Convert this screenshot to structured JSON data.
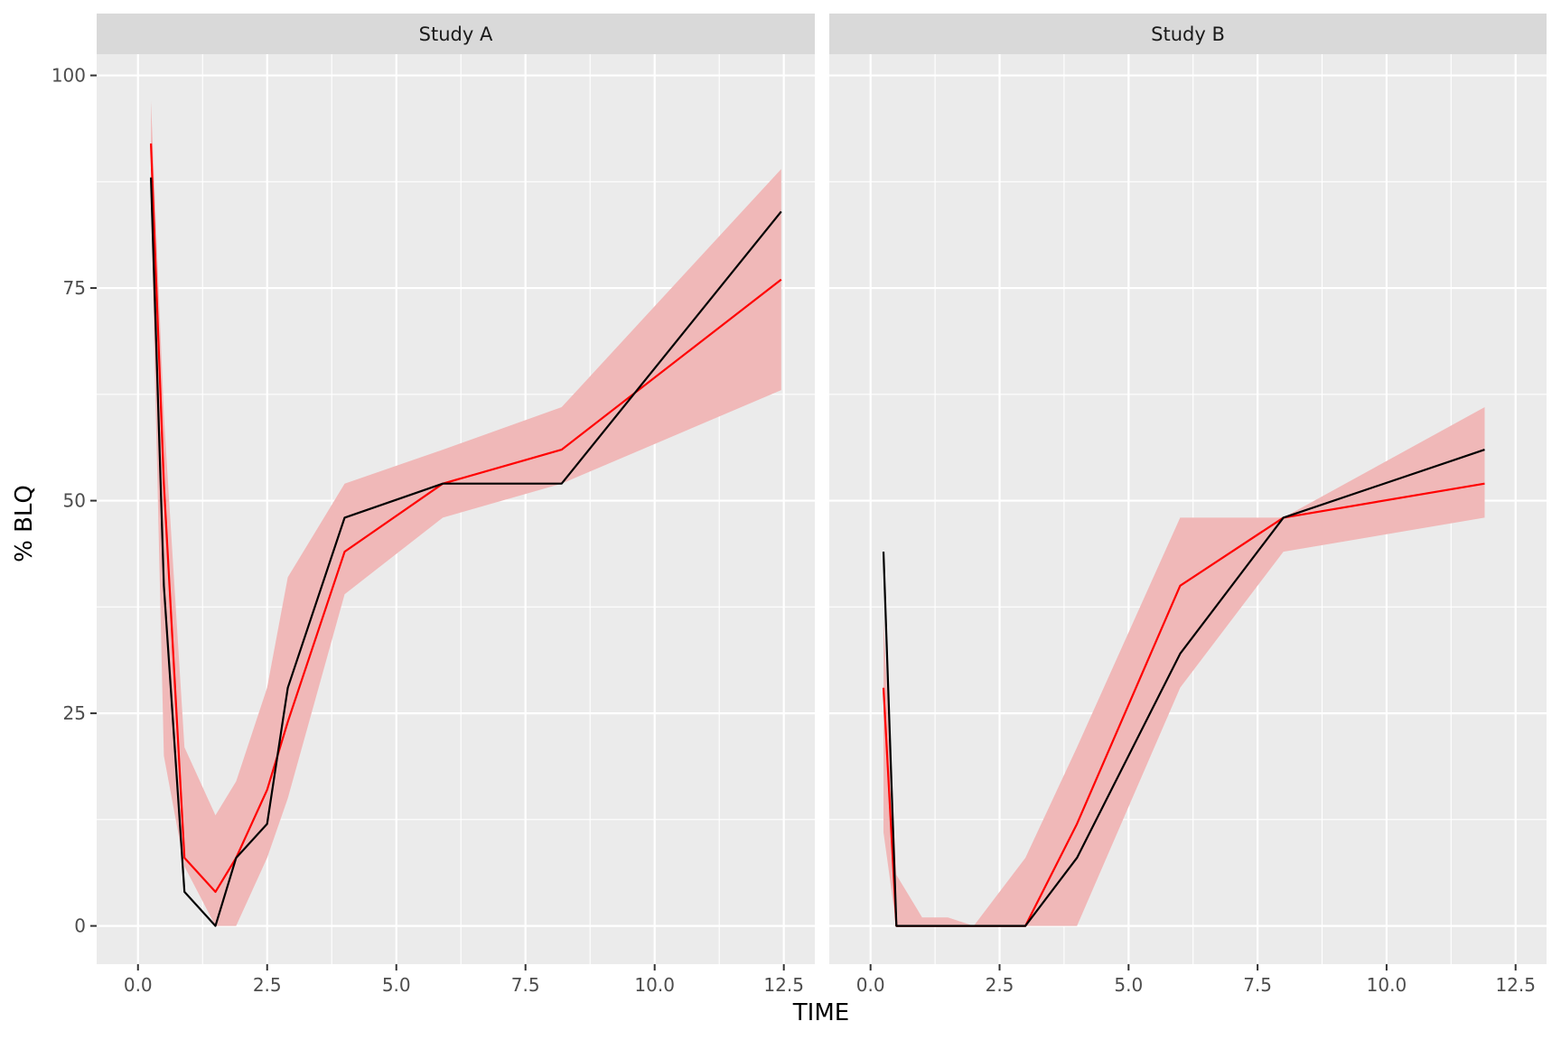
{
  "chart_data": {
    "type": "line",
    "xlabel": "TIME",
    "ylabel": "% BLQ",
    "xlim": [
      -0.8,
      13.1
    ],
    "ylim": [
      -4.5,
      102.5
    ],
    "x_ticks": [
      {
        "value": 0,
        "label": "0.0"
      },
      {
        "value": 2.5,
        "label": "2.5"
      },
      {
        "value": 5,
        "label": "5.0"
      },
      {
        "value": 7.5,
        "label": "7.5"
      },
      {
        "value": 10,
        "label": "10.0"
      },
      {
        "value": 12.5,
        "label": "12.5"
      }
    ],
    "y_ticks": [
      {
        "value": 0,
        "label": "0"
      },
      {
        "value": 25,
        "label": "25"
      },
      {
        "value": 50,
        "label": "50"
      },
      {
        "value": 75,
        "label": "75"
      },
      {
        "value": 100,
        "label": "100"
      }
    ],
    "grid": true,
    "colors": {
      "panel_bg": "#ebebeb",
      "strip_bg": "#d9d9d9",
      "grid": "#ffffff",
      "band": "#f0b8b8",
      "simulated_line": "#ff0000",
      "observed_line": "#000000"
    },
    "panels": [
      {
        "title": "Study A",
        "band": {
          "x": [
            0.25,
            0.5,
            0.9,
            1.5,
            1.9,
            2.5,
            2.9,
            4.0,
            5.9,
            8.2,
            12.45
          ],
          "lower": [
            85,
            20,
            7,
            0,
            0,
            8,
            15,
            39,
            48,
            52,
            63
          ],
          "upper": [
            97,
            60,
            21,
            13,
            17,
            28,
            41,
            52,
            56,
            61,
            89
          ]
        },
        "series": [
          {
            "color": "#ff0000",
            "x": [
              0.25,
              0.5,
              0.9,
              1.5,
              1.9,
              2.5,
              2.9,
              4.0,
              5.9,
              8.2,
              12.45
            ],
            "y": [
              92,
              52,
              8,
              4,
              8,
              16,
              24,
              44,
              52,
              56,
              76
            ]
          },
          {
            "color": "#000000",
            "x": [
              0.25,
              0.5,
              0.9,
              1.5,
              1.9,
              2.5,
              2.9,
              4.0,
              5.9,
              8.2,
              12.45
            ],
            "y": [
              88,
              40,
              4,
              0,
              8,
              12,
              28,
              48,
              52,
              52,
              84
            ]
          }
        ]
      },
      {
        "title": "Study B",
        "band": {
          "x": [
            0.25,
            0.5,
            1.0,
            1.5,
            2.0,
            2.5,
            3.0,
            4.0,
            6.0,
            8.0,
            11.9
          ],
          "lower": [
            11,
            0,
            0,
            0,
            0,
            0,
            0,
            0,
            28,
            44,
            48
          ],
          "upper": [
            36,
            6,
            1,
            1,
            0,
            4,
            8,
            21,
            48,
            48,
            61
          ]
        },
        "series": [
          {
            "color": "#ff0000",
            "x": [
              0.25,
              0.5,
              1.0,
              1.5,
              2.0,
              2.5,
              3.0,
              4.0,
              6.0,
              8.0,
              11.9
            ],
            "y": [
              28,
              0,
              0,
              0,
              0,
              0,
              0,
              12,
              40,
              48,
              52
            ]
          },
          {
            "color": "#000000",
            "x": [
              0.25,
              0.5,
              1.0,
              1.5,
              2.0,
              2.5,
              3.0,
              4.0,
              6.0,
              8.0,
              11.9
            ],
            "y": [
              44,
              0,
              0,
              0,
              0,
              0,
              0,
              8,
              32,
              48,
              56
            ]
          }
        ]
      }
    ]
  }
}
